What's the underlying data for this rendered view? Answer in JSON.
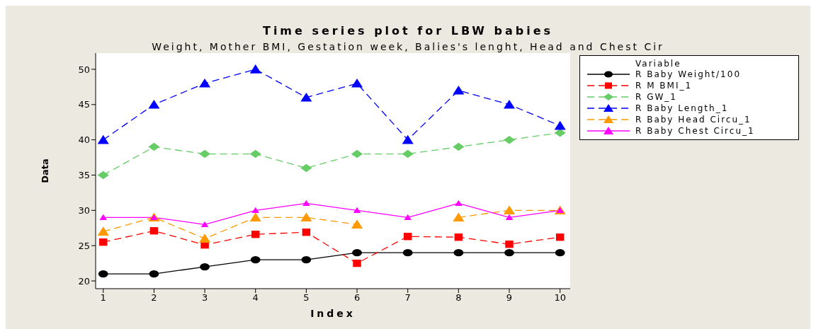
{
  "chart_data": {
    "type": "line",
    "title": "Time series plot for LBW babies",
    "subtitle": "Weight, Mother BMI, Gestation week, Balies's lenght, Head and Chest Cir",
    "xlabel": "Index",
    "ylabel": "Data",
    "legend_title": "Variable",
    "legend": "top right",
    "grid": false,
    "x": [
      1,
      2,
      3,
      4,
      5,
      6,
      7,
      8,
      9,
      10
    ],
    "xlim": [
      0.85,
      10.2
    ],
    "xticks": [
      1,
      2,
      3,
      4,
      5,
      6,
      7,
      8,
      9,
      10
    ],
    "ylim": [
      18.9,
      52.3
    ],
    "yticks": [
      20,
      25,
      30,
      35,
      40,
      45,
      50
    ],
    "series": [
      {
        "name": "R Baby Weight/100",
        "color": "#000000",
        "marker": "circle",
        "line_style": "solid",
        "values": [
          21,
          21,
          22,
          23,
          23,
          24,
          24,
          24,
          24,
          24
        ]
      },
      {
        "name": "R M BMI_1",
        "color": "#ff0000",
        "marker": "square",
        "line_style": "dashed",
        "values": [
          25.5,
          27.1,
          25.1,
          26.6,
          26.9,
          22.5,
          26.3,
          26.2,
          25.2,
          26.2
        ]
      },
      {
        "name": "R GW_1",
        "color": "#66cc66",
        "marker": "diamond",
        "line_style": "dashed",
        "values": [
          35,
          39,
          38,
          38,
          36,
          38,
          38,
          39,
          40,
          41
        ]
      },
      {
        "name": "R Baby Length_1",
        "color": "#0000ff",
        "marker": "triangle",
        "line_style": "dashed",
        "values": [
          40,
          45,
          48,
          50,
          46,
          48,
          40,
          47,
          45,
          42
        ]
      },
      {
        "name": "R Baby Head Circu_1",
        "color": "#ff9900",
        "marker": "triangle",
        "line_style": "dashed",
        "values": [
          27,
          29,
          26,
          29,
          29,
          28,
          null,
          29,
          30,
          30
        ]
      },
      {
        "name": "R Baby Chest Circu_1",
        "color": "#ff00ff",
        "marker": "triangle",
        "line_style": "solid",
        "values": [
          29,
          29,
          28,
          30,
          31,
          30,
          29,
          31,
          29,
          30
        ]
      }
    ]
  }
}
